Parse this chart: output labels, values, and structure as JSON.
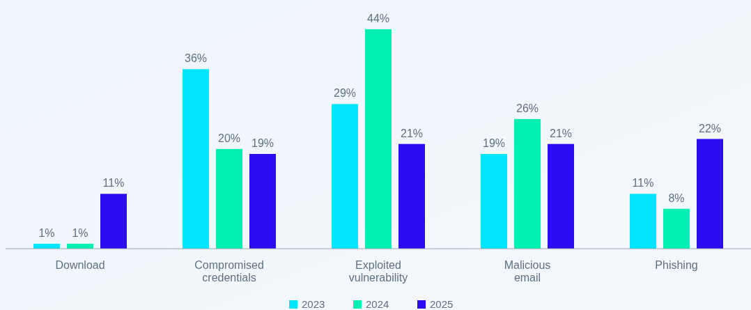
{
  "chart_data": {
    "type": "bar",
    "categories": [
      "Download",
      "Compromised credentials",
      "Exploited vulnerability",
      "Malicious email",
      "Phishing"
    ],
    "series": [
      {
        "name": "2023",
        "color": "#00e5ff",
        "values": [
          1,
          36,
          29,
          19,
          11
        ],
        "value_labels": [
          "1%",
          "36%",
          "29%",
          "19%",
          "11%"
        ]
      },
      {
        "name": "2024",
        "color": "#00f0b4",
        "values": [
          1,
          20,
          44,
          26,
          8
        ],
        "value_labels": [
          "1%",
          "20%",
          "44%",
          "26%",
          "8%"
        ]
      },
      {
        "name": "2025",
        "color": "#2a0df0",
        "values": [
          11,
          19,
          21,
          21,
          22
        ],
        "value_labels": [
          "11%",
          "19%",
          "21%",
          "21%",
          "22%"
        ]
      }
    ],
    "legend": "bottom",
    "grid": false
  }
}
